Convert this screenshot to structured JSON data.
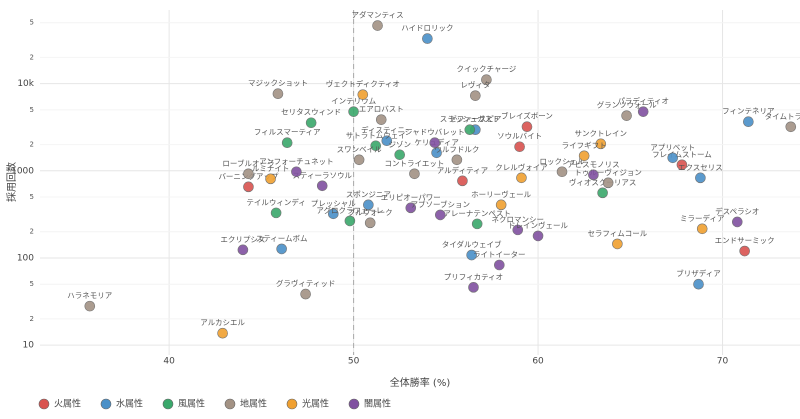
{
  "chart_data": {
    "type": "scatter",
    "x_label": "全体勝率 (%)",
    "y_label": "採用回数",
    "xlim": [
      33,
      74.2
    ],
    "ylim": [
      7.7,
      70000
    ],
    "log_y": true,
    "grid": true,
    "vline_x": 50,
    "xticks": [
      40,
      50,
      60,
      70
    ],
    "yticks": [
      10,
      {
        "value": 20,
        "label": "2"
      },
      {
        "value": 50,
        "label": "5"
      },
      100,
      {
        "value": 200,
        "label": "2"
      },
      {
        "value": 500,
        "label": "5"
      },
      1000,
      {
        "value": 2000,
        "label": "2"
      },
      {
        "value": 5000,
        "label": "5"
      },
      {
        "value": 10000,
        "label": "10k"
      },
      {
        "value": 20000,
        "label": "2"
      },
      {
        "value": 50000,
        "label": "5"
      }
    ],
    "legend_position": "bottom-left",
    "series": [
      {
        "name": "火属性",
        "color": "#d9534f",
        "x": [
          44.3,
          55.9,
          59.4,
          59.0,
          67.8,
          71.2
        ],
        "values": [
          655,
          767,
          3205,
          1888,
          1172,
          120
        ],
        "labels": [
          "バーニングアップ",
          "アルディティア",
          "ブレイズボーン",
          "ソウルバイト",
          "フレイムストーム",
          "エンドサーミック"
        ]
      },
      {
        "name": "水属性",
        "color": "#4a90c8",
        "x": [
          54.0,
          71.4,
          67.3,
          68.8,
          50.8,
          48.9,
          46.1,
          56.4,
          68.7,
          51.8,
          54.5,
          56.6
        ],
        "values": [
          32900,
          3660,
          1410,
          830,
          407,
          321,
          127,
          108,
          50,
          2213,
          1610,
          2960
        ],
        "labels": [
          "ハイドロリック",
          "フィンテネリア",
          "アプリベット",
          "エクスセリス",
          "スポンジニア",
          "プレッシャル",
          "スティームボム",
          "タイダルウェイブ",
          "ブリザディア",
          "ディスティニー",
          "ケリュディア",
          "ゼファースピア"
        ]
      },
      {
        "name": "風属性",
        "color": "#3aa86b",
        "x": [
          50.0,
          47.7,
          46.4,
          45.8,
          49.8,
          56.7,
          63.5,
          52.5,
          51.2,
          56.3
        ],
        "values": [
          4770,
          3560,
          2100,
          329,
          266,
          246,
          559,
          1528,
          1938,
          2960
        ],
        "labels": [
          "インテリウム",
          "セリタスウィンド",
          "フィルスマーティア",
          "テイルウィンディ",
          "アグロクラフェーレ",
          "アレーナテンペスト",
          "ヴィオスクーリアス",
          "ジゾン",
          "サトラトムウェイ",
          "スラッシュガスト"
        ]
      },
      {
        "name": "地属性",
        "color": "#a39284",
        "x": [
          51.3,
          45.9,
          57.2,
          56.6,
          64.8,
          73.7,
          50.3,
          53.3,
          44.3,
          51.5,
          61.3,
          63.8,
          47.4,
          35.7,
          55.6,
          50.9
        ],
        "values": [
          46400,
          7670,
          11100,
          7280,
          4290,
          3200,
          1337,
          924,
          924,
          3860,
          975,
          728,
          38.5,
          28,
          1337,
          253
        ],
        "labels": [
          "アダマンティス",
          "マジックショット",
          "クイックチャージ",
          "レヴィタ",
          "グランツウォール",
          "タイムトラベラ",
          "スワンベイル",
          "コントライエット",
          "ローブルオーラ",
          "エアロバスト",
          "ロックシェル",
          "トゥルーヴィジョン",
          "グラヴィティッド",
          "ハラネモリア",
          "ウルフドルク",
          "ブルウォーク"
        ]
      },
      {
        "name": "光属性",
        "color": "#f0a030",
        "x": [
          50.5,
          63.4,
          62.5,
          59.1,
          58.0,
          64.3,
          68.9,
          42.9,
          45.5
        ],
        "values": [
          7480,
          2040,
          1487,
          831,
          407,
          145,
          216,
          13.7,
          809
        ],
        "labels": [
          "ヴェクトディクティオ",
          "サンクトレイン",
          "ライフギフト",
          "クレルヴォイア",
          "ホーリーヴェール",
          "セラフィムコール",
          "ミラーディア",
          "アルカシエル",
          "ルミナイト"
        ]
      },
      {
        "name": "闇属性",
        "color": "#8050a0",
        "x": [
          65.7,
          57.9,
          56.5,
          44.0,
          48.3,
          46.9,
          53.1,
          54.7,
          58.9,
          60.0,
          70.8,
          63.0,
          54.4
        ],
        "values": [
          4770,
          83,
          46,
          124,
          673,
          975,
          376,
          312,
          210,
          179,
          259,
          899,
          2100
        ],
        "labels": [
          "パラディティオ",
          "ライトイーター",
          "プリフィカティオ",
          "エクリプシス",
          "スティーラソウル",
          "アンフォーチュネット",
          "エリピオーパワー",
          "アブソーブション",
          "ネクロマンシー",
          "ドレインヴェール",
          "デスペラシオ",
          "アビスモノリス",
          "シャドウバレット"
        ]
      }
    ]
  }
}
